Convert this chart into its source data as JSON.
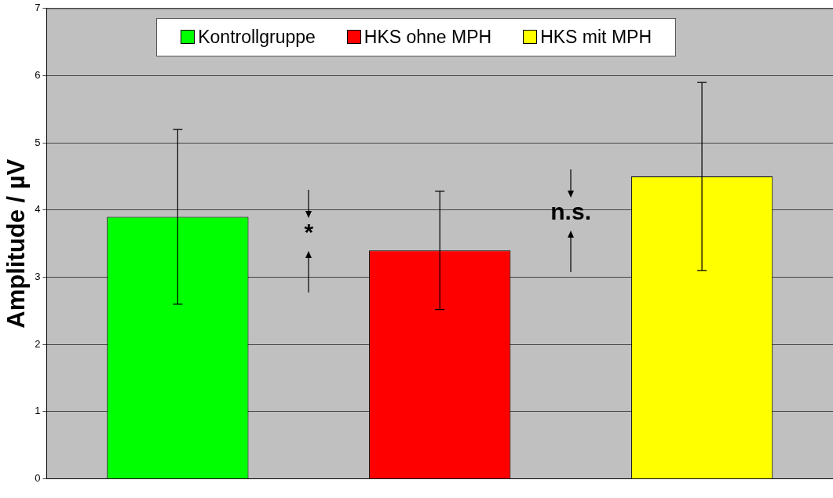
{
  "chart_data": {
    "type": "bar",
    "ylabel": "Amplitude / µV",
    "categories": [
      null,
      null,
      null
    ],
    "series": [
      {
        "name": "Kontrollgruppe",
        "color": "#00ff00",
        "values": [
          3.9,
          null,
          null
        ],
        "errors": [
          1.3,
          null,
          null
        ]
      },
      {
        "name": "HKS ohne MPH",
        "color": "#ff0000",
        "values": [
          null,
          3.4,
          null
        ],
        "errors": [
          null,
          0.88,
          null
        ]
      },
      {
        "name": "HKS mit MPH",
        "color": "#ffff00",
        "values": [
          null,
          null,
          4.5
        ],
        "errors": [
          null,
          null,
          1.4
        ]
      }
    ],
    "ylim": [
      0,
      7
    ],
    "yticks": [
      0,
      1,
      2,
      3,
      4,
      5,
      6,
      7
    ],
    "grid": "y",
    "legend": "top",
    "annotations": [
      "*",
      "n.s."
    ]
  }
}
